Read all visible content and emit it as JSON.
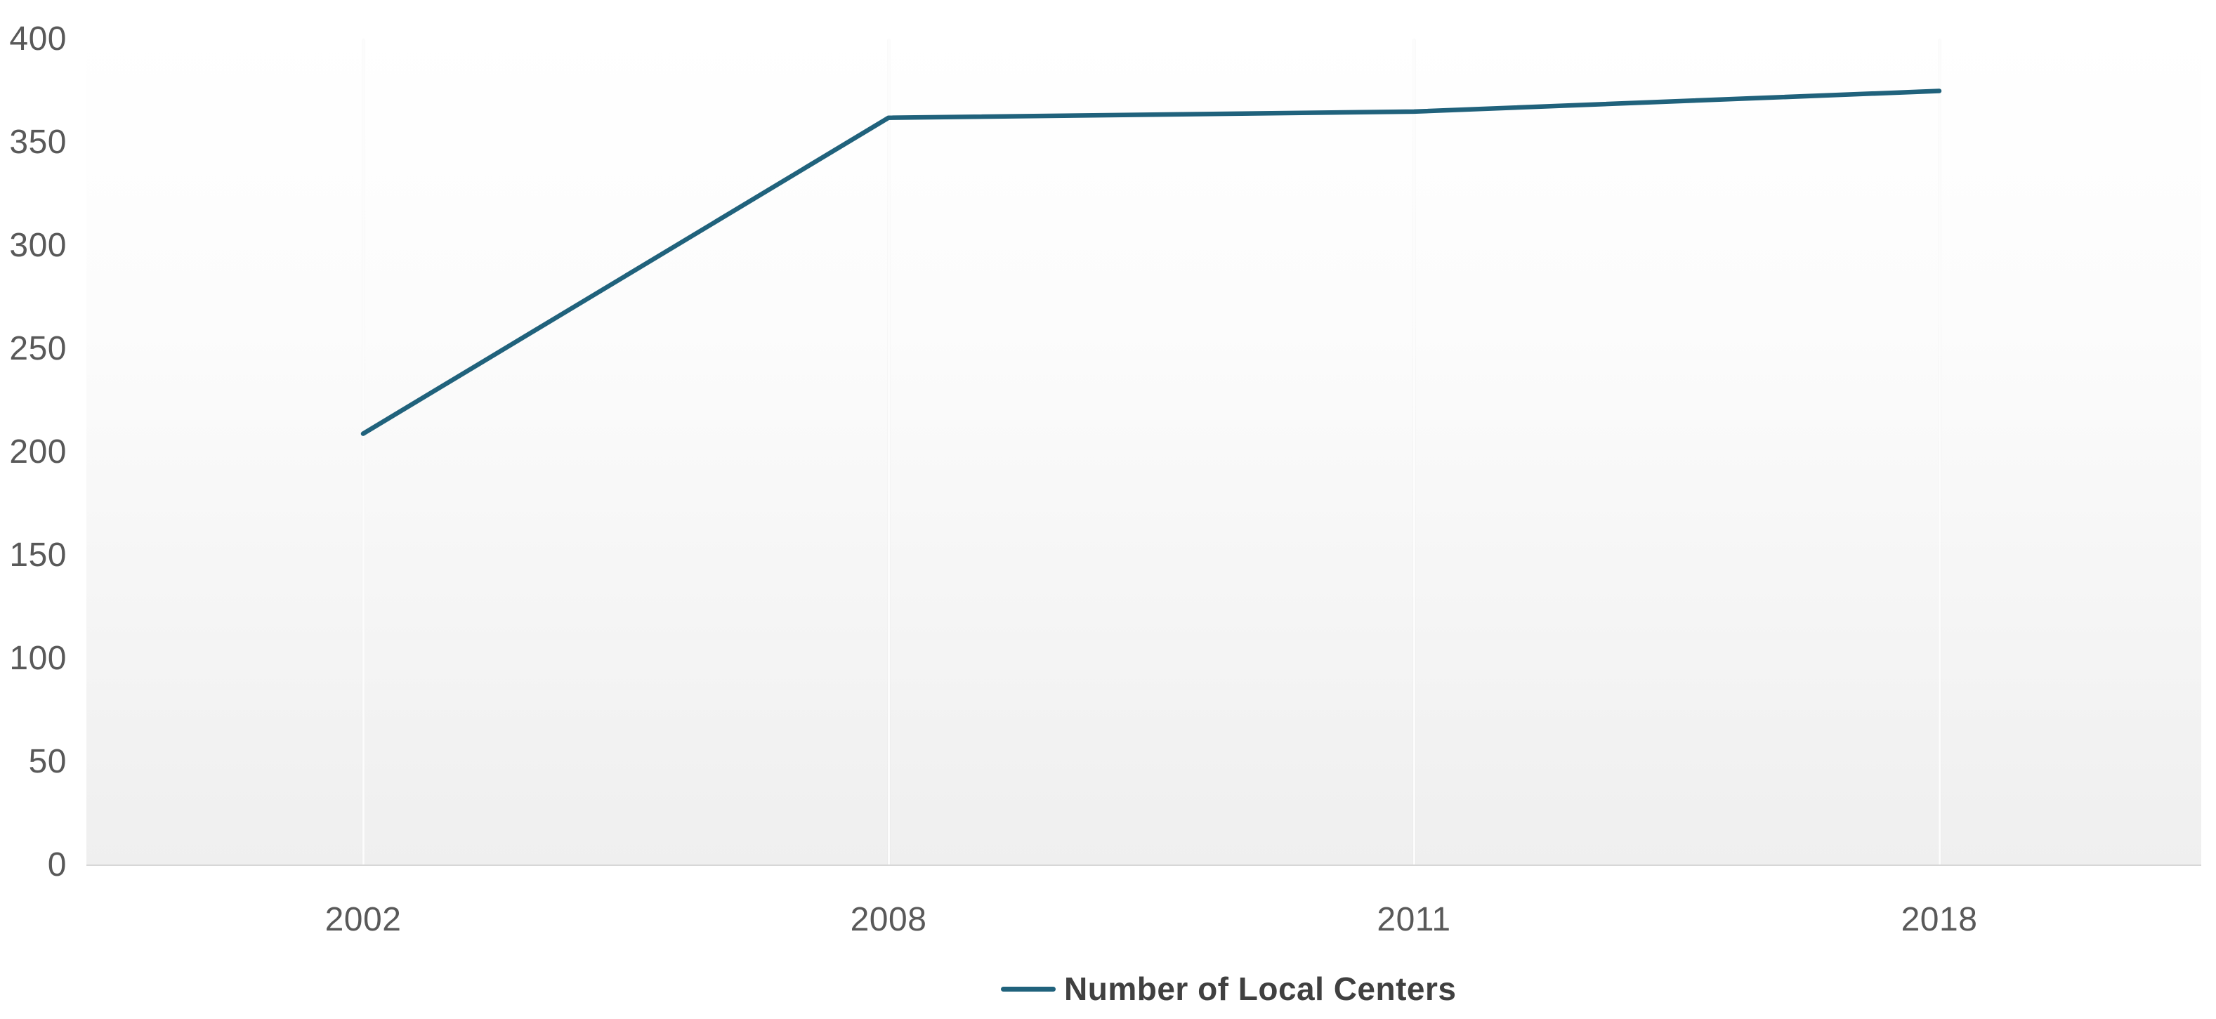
{
  "chart_data": {
    "type": "line",
    "title": "",
    "categories": [
      "2002",
      "2008",
      "2011",
      "2018"
    ],
    "series": [
      {
        "name": "Number of Local Centers",
        "values": [
          209,
          362,
          365,
          375
        ]
      }
    ],
    "xlabel": "",
    "ylabel": "",
    "ylim": [
      0,
      400
    ],
    "y_ticks": [
      0,
      50,
      100,
      150,
      200,
      250,
      300,
      350,
      400
    ],
    "grid": "vertical category gridlines only",
    "legend_position": "bottom-center",
    "plot_background": "white-to-gray vertical gradient"
  },
  "legend": {
    "items": [
      {
        "label": "Number of Local Centers",
        "swatch_color": "#20627c"
      }
    ]
  },
  "colors": {
    "line": "#20627c",
    "tick_label": "#595959",
    "legend_label": "#404040",
    "axis_line": "#d7d7d7",
    "plot_bg_top": "#ffffff",
    "plot_bg_bottom": "#efefef",
    "gridline": "#fcfcfc"
  }
}
